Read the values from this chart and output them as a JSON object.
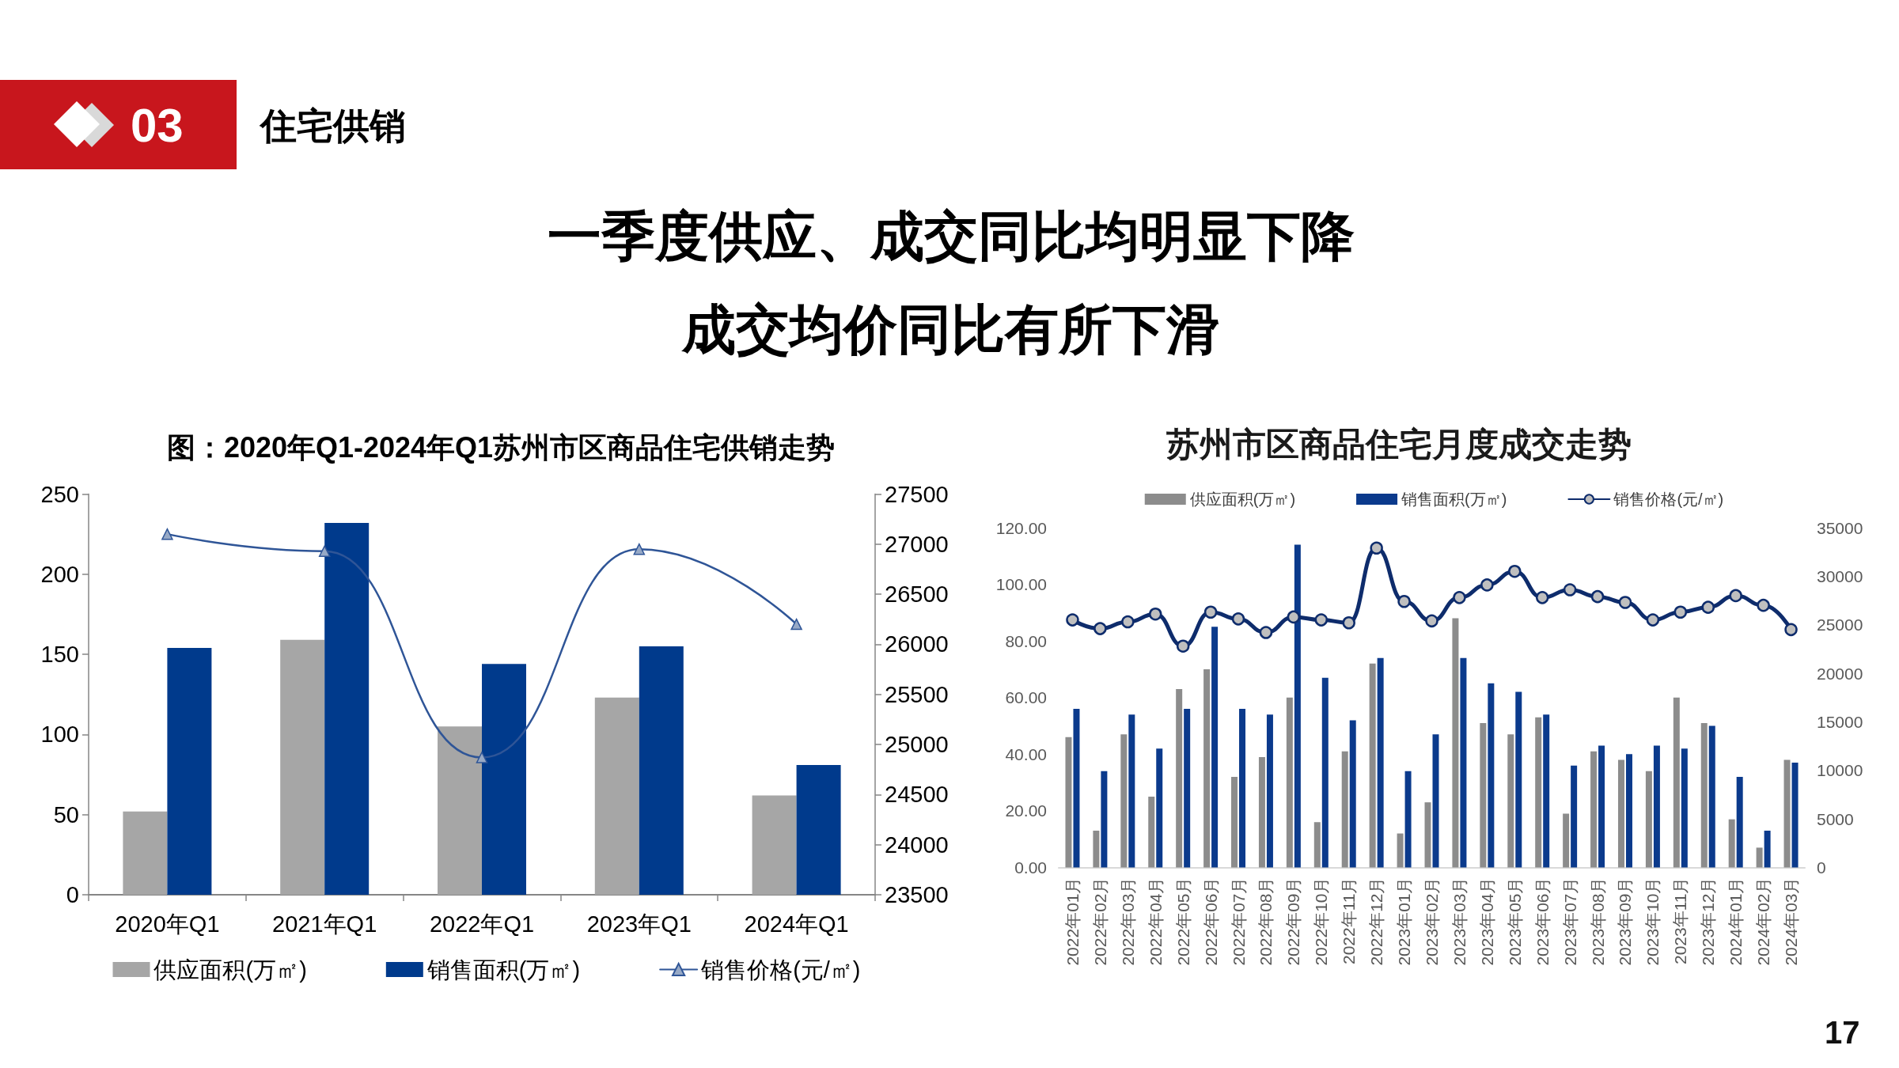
{
  "chart_data": [
    {
      "type": "other",
      "title": "一季度供应、成交同比均明显下降",
      "subtitle": "成交均价同比有所下滑",
      "annotations": [
        "03",
        "住宅供销",
        "17"
      ]
    },
    {
      "type": "bar",
      "title": "图：2020年Q1-2024年Q1苏州市区商品住宅供销走势",
      "categories": [
        "2020年Q1",
        "2021年Q1",
        "2022年Q1",
        "2023年Q1",
        "2024年Q1"
      ],
      "series": [
        {
          "name": "供应面积(万㎡)",
          "color": "#a6a6a6",
          "values": [
            52,
            159,
            105,
            123,
            62
          ]
        },
        {
          "name": "销售面积(万㎡)",
          "color": "#003a8c",
          "values": [
            154,
            232,
            144,
            155,
            81
          ]
        },
        {
          "name": "销售价格(元/㎡)",
          "type": "line",
          "axis": "y2",
          "color": "#2f5597",
          "values": [
            27100,
            26930,
            24870,
            26950,
            26200
          ]
        }
      ],
      "ylim": [
        0,
        250
      ],
      "yticks": [
        0,
        50,
        100,
        150,
        200,
        250
      ],
      "y2lim": [
        23500,
        27500
      ],
      "y2ticks": [
        23500,
        24000,
        24500,
        25000,
        25500,
        26000,
        26500,
        27000,
        27500
      ],
      "legend": "bottom",
      "marker": "triangle"
    },
    {
      "type": "bar",
      "title": "苏州市区商品住宅月度成交走势",
      "categories": [
        "2022年01月",
        "2022年02月",
        "2022年03月",
        "2022年04月",
        "2022年05月",
        "2022年06月",
        "2022年07月",
        "2022年08月",
        "2022年09月",
        "2022年10月",
        "2022年11月",
        "2022年12月",
        "2023年01月",
        "2023年02月",
        "2023年03月",
        "2023年04月",
        "2023年05月",
        "2023年06月",
        "2023年07月",
        "2023年08月",
        "2023年09月",
        "2023年10月",
        "2023年11月",
        "2023年12月",
        "2024年01月",
        "2024年02月",
        "2024年03月"
      ],
      "series": [
        {
          "name": "供应面积(万㎡)",
          "color": "#8c8c8c",
          "values": [
            46,
            13,
            47,
            25,
            63,
            70,
            32,
            39,
            60,
            16,
            41,
            72,
            12,
            23,
            88,
            51,
            47,
            53,
            19,
            41,
            38,
            34,
            60,
            51,
            17,
            7,
            38
          ]
        },
        {
          "name": "销售面积(万㎡)",
          "color": "#0b3a8c",
          "values": [
            56,
            34,
            54,
            42,
            56,
            85,
            56,
            54,
            114,
            67,
            52,
            74,
            34,
            47,
            74,
            65,
            62,
            54,
            36,
            43,
            40,
            43,
            42,
            50,
            32,
            13,
            37
          ]
        },
        {
          "name": "销售价格(元/㎡)",
          "type": "line",
          "axis": "y2",
          "color": "#0e2c6c",
          "values": [
            25500,
            24600,
            25300,
            26100,
            22800,
            26300,
            25600,
            24200,
            25800,
            25500,
            25200,
            32900,
            27400,
            25400,
            27800,
            29100,
            30500,
            27800,
            28600,
            27900,
            27300,
            25500,
            26300,
            26800,
            28000,
            27000,
            24500
          ]
        }
      ],
      "ylim": [
        0,
        120
      ],
      "yticks": [
        {
          "value": 0,
          "label": "0.00"
        },
        {
          "value": 20,
          "label": "20.00"
        },
        {
          "value": 40,
          "label": "40.00"
        },
        {
          "value": 60,
          "label": "60.00"
        },
        {
          "value": 80,
          "label": "80.00"
        },
        {
          "value": 100,
          "label": "100.00"
        },
        {
          "value": 120,
          "label": "120.00"
        }
      ],
      "y2lim": [
        0,
        35000
      ],
      "y2ticks": [
        0,
        5000,
        10000,
        15000,
        20000,
        25000,
        30000,
        35000
      ],
      "legend": "top",
      "marker": "circle"
    }
  ]
}
